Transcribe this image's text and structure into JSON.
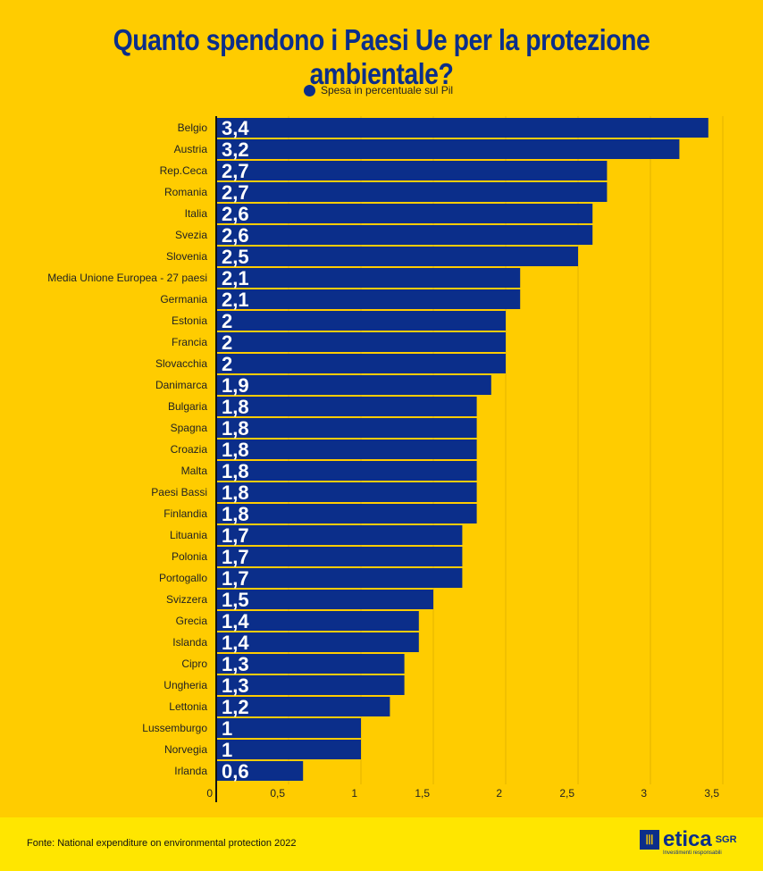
{
  "chart_data": {
    "type": "bar",
    "orientation": "horizontal",
    "title": "Quanto spendono i Paesi Ue per la protezione ambientale?",
    "legend": [
      {
        "name": "Spesa in percentuale sul Pil",
        "color": "#0B2E8A"
      }
    ],
    "legend_placement": "top",
    "categories": [
      "Belgio",
      "Austria",
      "Rep.Ceca",
      "Romania",
      "Italia",
      "Svezia",
      "Slovenia",
      "Media Unione Europea - 27 paesi",
      "Germania",
      "Estonia",
      "Francia",
      "Slovacchia",
      "Danimarca",
      "Bulgaria",
      "Spagna",
      "Croazia",
      "Malta",
      "Paesi Bassi",
      "Finlandia",
      "Lituania",
      "Polonia",
      "Portogallo",
      "Svizzera",
      "Grecia",
      "Islanda",
      "Cipro",
      "Ungheria",
      "Lettonia",
      "Lussemburgo",
      "Norvegia",
      "Irlanda"
    ],
    "series": [
      {
        "name": "Spesa in percentuale sul Pil",
        "values": [
          3.4,
          3.2,
          2.7,
          2.7,
          2.6,
          2.6,
          2.5,
          2.1,
          2.1,
          2,
          2,
          2,
          1.9,
          1.8,
          1.8,
          1.8,
          1.8,
          1.8,
          1.8,
          1.7,
          1.7,
          1.7,
          1.5,
          1.4,
          1.4,
          1.3,
          1.3,
          1.2,
          1,
          1,
          0.6
        ]
      }
    ],
    "data_labels": [
      "3,4",
      "3,2",
      "2,7",
      "2,7",
      "2,6",
      "2,6",
      "2,5",
      "2,1",
      "2,1",
      "2",
      "2",
      "2",
      "1,9",
      "1,8",
      "1,8",
      "1,8",
      "1,8",
      "1,8",
      "1,8",
      "1,7",
      "1,7",
      "1,7",
      "1,5",
      "1,4",
      "1,4",
      "1,3",
      "1,3",
      "1,2",
      "1",
      "1",
      "0,6"
    ],
    "xlim": [
      0,
      3.5
    ],
    "x_ticks": [
      "0",
      "0,5",
      "1",
      "1,5",
      "2",
      "2,5",
      "3",
      "3,5"
    ],
    "grid": true
  },
  "footer": {
    "source": "Fonte: National expenditure on environmental protection 2022",
    "logo_text": "etica",
    "logo_suffix": "SGR",
    "logo_tagline": "Investimenti responsabili"
  },
  "colors": {
    "background": "#FFCC00",
    "footer": "#FFE600",
    "bar": "#0B2E8A"
  }
}
